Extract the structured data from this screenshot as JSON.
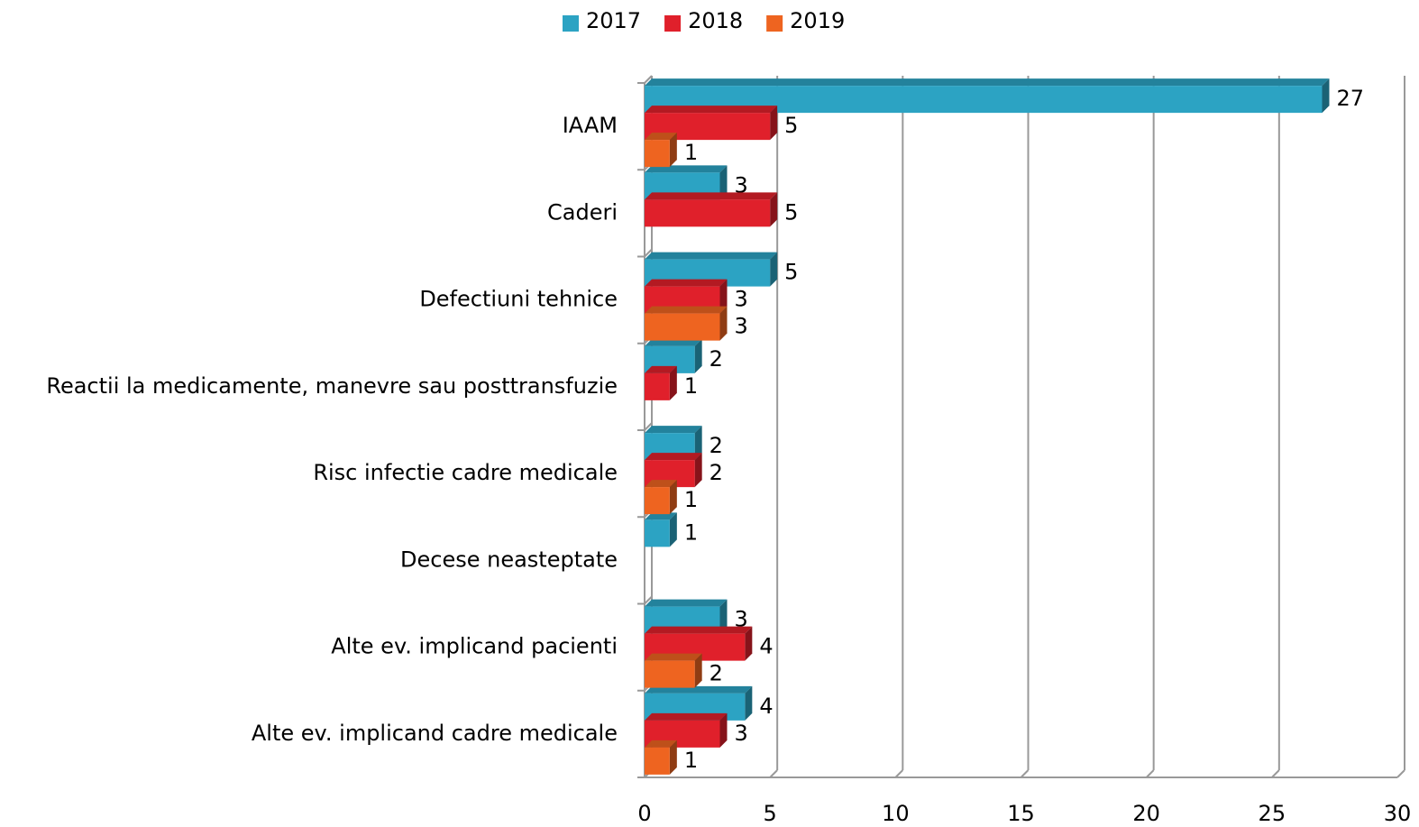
{
  "chart_data": {
    "type": "bar",
    "orientation": "horizontal",
    "categories": [
      "IAAM",
      "Caderi",
      "Defectiuni tehnice",
      "Reactii la medicamente, manevre sau posttransfuzie",
      "Risc infectie cadre medicale",
      "Decese neasteptate",
      "Alte ev. implicand pacienti",
      "Alte ev. implicand cadre medicale"
    ],
    "series": [
      {
        "name": "2017",
        "color": "#2ca3c3",
        "values": [
          27,
          3,
          5,
          2,
          2,
          1,
          3,
          4
        ]
      },
      {
        "name": "2018",
        "color": "#e0202b",
        "values": [
          5,
          5,
          3,
          1,
          2,
          null,
          4,
          3
        ]
      },
      {
        "name": "2019",
        "color": "#ee6420",
        "values": [
          1,
          null,
          3,
          null,
          1,
          null,
          2,
          1
        ]
      }
    ],
    "xlim": [
      0,
      30
    ],
    "xticks": [
      0,
      5,
      10,
      15,
      20,
      25,
      30
    ],
    "grid": true,
    "legend": "top"
  }
}
